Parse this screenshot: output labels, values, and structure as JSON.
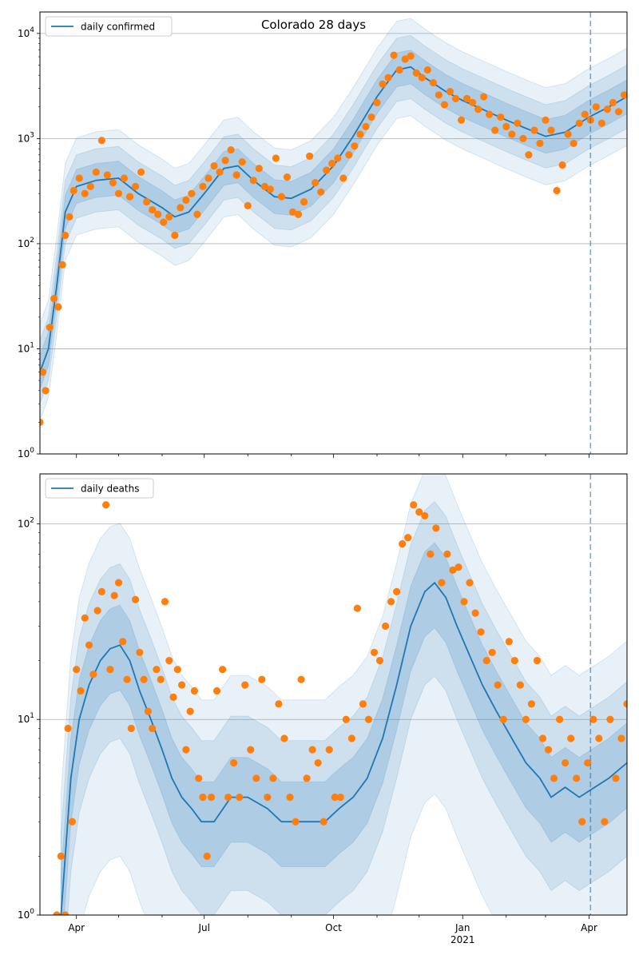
{
  "chart_data": [
    {
      "type": "scatter",
      "title": "Colorado 28 days",
      "yscale": "log",
      "ylim": [
        1,
        16000
      ],
      "xlim": [
        "2020-03-06",
        "2021-04-28"
      ],
      "grid": "y",
      "legend": {
        "position": "top-left",
        "entries": [
          "daily confirmed"
        ]
      },
      "y_ticks": [
        1,
        10,
        100,
        1000,
        10000
      ],
      "y_tick_labels": [
        "10^0",
        "10^1",
        "10^2",
        "10^3",
        "10^4"
      ],
      "vline": "2021-04-02",
      "series": [
        {
          "name": "daily confirmed",
          "kind": "line",
          "x": [
            "2020-03-06",
            "2020-03-12",
            "2020-03-18",
            "2020-03-24",
            "2020-04-01",
            "2020-04-15",
            "2020-05-01",
            "2020-05-15",
            "2020-06-01",
            "2020-06-10",
            "2020-06-20",
            "2020-07-01",
            "2020-07-15",
            "2020-07-25",
            "2020-08-05",
            "2020-08-20",
            "2020-09-01",
            "2020-09-15",
            "2020-10-01",
            "2020-10-15",
            "2020-11-01",
            "2020-11-15",
            "2020-11-25",
            "2020-12-05",
            "2020-12-20",
            "2021-01-01",
            "2021-01-15",
            "2021-02-01",
            "2021-02-15",
            "2021-03-01",
            "2021-03-15",
            "2021-04-01",
            "2021-04-15",
            "2021-04-28"
          ],
          "values": [
            6,
            10,
            40,
            200,
            350,
            400,
            420,
            300,
            220,
            180,
            200,
            300,
            520,
            550,
            400,
            280,
            270,
            330,
            550,
            1050,
            2500,
            4500,
            4800,
            3800,
            2800,
            2300,
            1900,
            1500,
            1250,
            1050,
            1150,
            1600,
            2000,
            2500
          ]
        }
      ],
      "points": {
        "x": [
          "2020-03-06",
          "2020-03-08",
          "2020-03-10",
          "2020-03-13",
          "2020-03-16",
          "2020-03-19",
          "2020-03-22",
          "2020-03-24",
          "2020-03-27",
          "2020-03-30",
          "2020-04-03",
          "2020-04-07",
          "2020-04-11",
          "2020-04-15",
          "2020-04-19",
          "2020-04-23",
          "2020-04-27",
          "2020-05-01",
          "2020-05-05",
          "2020-05-09",
          "2020-05-13",
          "2020-05-17",
          "2020-05-21",
          "2020-05-25",
          "2020-05-29",
          "2020-06-02",
          "2020-06-06",
          "2020-06-10",
          "2020-06-14",
          "2020-06-18",
          "2020-06-22",
          "2020-06-26",
          "2020-06-30",
          "2020-07-04",
          "2020-07-08",
          "2020-07-12",
          "2020-07-16",
          "2020-07-20",
          "2020-07-24",
          "2020-07-28",
          "2020-08-01",
          "2020-08-05",
          "2020-08-09",
          "2020-08-13",
          "2020-08-17",
          "2020-08-21",
          "2020-08-25",
          "2020-08-29",
          "2020-09-02",
          "2020-09-06",
          "2020-09-10",
          "2020-09-14",
          "2020-09-18",
          "2020-09-22",
          "2020-09-26",
          "2020-09-30",
          "2020-10-04",
          "2020-10-08",
          "2020-10-12",
          "2020-10-16",
          "2020-10-20",
          "2020-10-24",
          "2020-10-28",
          "2020-11-01",
          "2020-11-05",
          "2020-11-09",
          "2020-11-13",
          "2020-11-17",
          "2020-11-21",
          "2020-11-25",
          "2020-11-29",
          "2020-12-03",
          "2020-12-07",
          "2020-12-11",
          "2020-12-15",
          "2020-12-19",
          "2020-12-23",
          "2020-12-27",
          "2020-12-31",
          "2021-01-04",
          "2021-01-08",
          "2021-01-12",
          "2021-01-16",
          "2021-01-20",
          "2021-01-24",
          "2021-01-28",
          "2021-02-01",
          "2021-02-05",
          "2021-02-09",
          "2021-02-13",
          "2021-02-17",
          "2021-02-21",
          "2021-02-25",
          "2021-03-01",
          "2021-03-05",
          "2021-03-09",
          "2021-03-13",
          "2021-03-17",
          "2021-03-21",
          "2021-03-25",
          "2021-03-29",
          "2021-04-02",
          "2021-04-06",
          "2021-04-10",
          "2021-04-14",
          "2021-04-18",
          "2021-04-22",
          "2021-04-26"
        ],
        "values": [
          2,
          6,
          4,
          16,
          30,
          25,
          63,
          120,
          180,
          320,
          420,
          300,
          350,
          480,
          960,
          450,
          380,
          300,
          420,
          280,
          350,
          480,
          250,
          210,
          190,
          160,
          180,
          120,
          220,
          260,
          300,
          190,
          350,
          420,
          550,
          480,
          620,
          780,
          450,
          600,
          230,
          400,
          520,
          350,
          330,
          650,
          280,
          430,
          200,
          190,
          250,
          680,
          380,
          310,
          500,
          580,
          650,
          420,
          700,
          850,
          1100,
          1300,
          1600,
          2200,
          3300,
          3800,
          6200,
          4500,
          5700,
          6100,
          4200,
          3800,
          4500,
          3400,
          2600,
          2100,
          2800,
          2400,
          1500,
          2400,
          2200,
          1900,
          2500,
          1700,
          1200,
          1600,
          1300,
          1100,
          1400,
          1000,
          700,
          1200,
          900,
          1500,
          1200,
          320,
          560,
          1100,
          900,
          1400,
          1700,
          1500,
          2000,
          1400,
          1900,
          2200,
          1800,
          2600
        ]
      }
    },
    {
      "type": "scatter",
      "title": "",
      "yscale": "log",
      "ylim": [
        1,
        180
      ],
      "xlim": [
        "2020-03-06",
        "2021-04-28"
      ],
      "grid": "y",
      "legend": {
        "position": "top-left",
        "entries": [
          "daily deaths"
        ]
      },
      "y_ticks": [
        1,
        10,
        100
      ],
      "y_tick_labels": [
        "10^0",
        "10^1",
        "10^2"
      ],
      "x_ticks": [
        "2020-04-01",
        "2020-07-01",
        "2020-10-01",
        "2021-01-01",
        "2021-04-01"
      ],
      "x_tick_labels": [
        "Apr",
        "Jul",
        "Oct",
        "Jan\n2021",
        "Apr"
      ],
      "vline": "2021-04-02",
      "series": [
        {
          "name": "daily deaths",
          "kind": "line",
          "x": [
            "2020-03-21",
            "2020-03-24",
            "2020-03-28",
            "2020-04-03",
            "2020-04-10",
            "2020-04-18",
            "2020-04-25",
            "2020-05-02",
            "2020-05-09",
            "2020-05-16",
            "2020-05-24",
            "2020-06-01",
            "2020-06-08",
            "2020-06-15",
            "2020-06-22",
            "2020-06-29",
            "2020-07-08",
            "2020-07-20",
            "2020-08-01",
            "2020-08-15",
            "2020-08-25",
            "2020-09-05",
            "2020-09-15",
            "2020-09-25",
            "2020-10-05",
            "2020-10-15",
            "2020-10-25",
            "2020-11-05",
            "2020-11-15",
            "2020-11-25",
            "2020-12-05",
            "2020-12-12",
            "2020-12-20",
            "2020-12-28",
            "2021-01-05",
            "2021-01-15",
            "2021-01-25",
            "2021-02-05",
            "2021-02-15",
            "2021-02-25",
            "2021-03-05",
            "2021-03-15",
            "2021-03-25",
            "2021-04-05",
            "2021-04-15",
            "2021-04-28"
          ],
          "values": [
            1,
            2,
            5,
            10,
            15,
            20,
            23,
            24,
            20,
            14,
            10,
            7,
            5,
            4,
            3.5,
            3,
            3,
            4,
            4,
            3.5,
            3,
            3,
            3,
            3,
            3.5,
            4,
            5,
            8,
            15,
            30,
            45,
            50,
            42,
            30,
            22,
            15,
            11,
            8,
            6,
            5,
            4,
            4.5,
            4,
            4.5,
            5,
            6
          ]
        }
      ],
      "points": {
        "x": [
          "2020-03-18",
          "2020-03-21",
          "2020-03-24",
          "2020-03-26",
          "2020-03-29",
          "2020-04-01",
          "2020-04-04",
          "2020-04-07",
          "2020-04-10",
          "2020-04-13",
          "2020-04-16",
          "2020-04-19",
          "2020-04-22",
          "2020-04-25",
          "2020-04-28",
          "2020-05-01",
          "2020-05-04",
          "2020-05-07",
          "2020-05-10",
          "2020-05-13",
          "2020-05-16",
          "2020-05-19",
          "2020-05-22",
          "2020-05-25",
          "2020-05-28",
          "2020-05-31",
          "2020-06-03",
          "2020-06-06",
          "2020-06-09",
          "2020-06-12",
          "2020-06-15",
          "2020-06-18",
          "2020-06-21",
          "2020-06-24",
          "2020-06-27",
          "2020-06-30",
          "2020-07-03",
          "2020-07-06",
          "2020-07-10",
          "2020-07-14",
          "2020-07-18",
          "2020-07-22",
          "2020-07-26",
          "2020-07-30",
          "2020-08-03",
          "2020-08-07",
          "2020-08-11",
          "2020-08-15",
          "2020-08-19",
          "2020-08-23",
          "2020-08-27",
          "2020-08-31",
          "2020-09-04",
          "2020-09-08",
          "2020-09-12",
          "2020-09-16",
          "2020-09-20",
          "2020-09-24",
          "2020-09-28",
          "2020-10-02",
          "2020-10-06",
          "2020-10-10",
          "2020-10-14",
          "2020-10-18",
          "2020-10-22",
          "2020-10-26",
          "2020-10-30",
          "2020-11-03",
          "2020-11-07",
          "2020-11-11",
          "2020-11-15",
          "2020-11-19",
          "2020-11-23",
          "2020-11-27",
          "2020-12-01",
          "2020-12-05",
          "2020-12-09",
          "2020-12-13",
          "2020-12-17",
          "2020-12-21",
          "2020-12-25",
          "2020-12-29",
          "2021-01-02",
          "2021-01-06",
          "2021-01-10",
          "2021-01-14",
          "2021-01-18",
          "2021-01-22",
          "2021-01-26",
          "2021-01-30",
          "2021-02-03",
          "2021-02-07",
          "2021-02-11",
          "2021-02-15",
          "2021-02-19",
          "2021-02-23",
          "2021-02-27",
          "2021-03-03",
          "2021-03-07",
          "2021-03-11",
          "2021-03-15",
          "2021-03-19",
          "2021-03-23",
          "2021-03-27",
          "2021-03-31",
          "2021-04-04",
          "2021-04-08",
          "2021-04-12",
          "2021-04-16",
          "2021-04-20",
          "2021-04-24",
          "2021-04-28"
        ],
        "values": [
          1,
          2,
          1,
          9,
          3,
          18,
          14,
          33,
          24,
          17,
          36,
          45,
          125,
          18,
          43,
          50,
          25,
          16,
          9,
          41,
          22,
          16,
          11,
          9,
          18,
          16,
          40,
          20,
          13,
          18,
          15,
          7,
          11,
          14,
          5,
          4,
          2,
          4,
          14,
          18,
          4,
          6,
          4,
          15,
          7,
          5,
          16,
          4,
          5,
          12,
          8,
          4,
          3,
          16,
          5,
          7,
          6,
          3,
          7,
          4,
          4,
          10,
          8,
          37,
          12,
          10,
          22,
          20,
          30,
          40,
          45,
          79,
          85,
          125,
          115,
          110,
          70,
          95,
          50,
          70,
          58,
          60,
          40,
          50,
          35,
          28,
          20,
          22,
          15,
          10,
          25,
          20,
          15,
          10,
          12,
          20,
          8,
          7,
          5,
          10,
          6,
          8,
          5,
          3,
          6,
          10,
          8,
          3,
          10,
          5,
          8,
          12
        ]
      }
    }
  ]
}
